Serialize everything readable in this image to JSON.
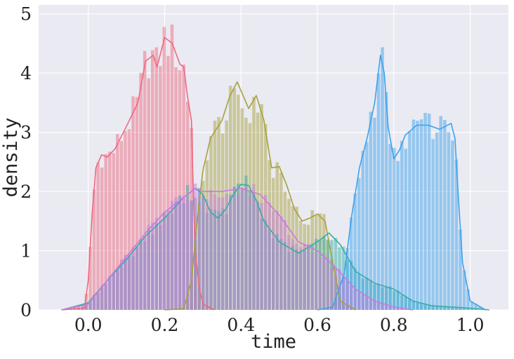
{
  "chart_data": {
    "type": "histogram",
    "title": "",
    "xlabel": "time",
    "ylabel": "density",
    "xlim": [
      -0.13,
      1.1
    ],
    "ylim": [
      0,
      5.15
    ],
    "x_ticks": [
      0.0,
      0.2,
      0.4,
      0.6,
      0.8,
      1.0
    ],
    "x_tick_labels": [
      "0.0",
      "0.2",
      "0.4",
      "0.6",
      "0.8",
      "1.0"
    ],
    "y_ticks": [
      0,
      1,
      2,
      3,
      4,
      5
    ],
    "y_tick_labels": [
      "0",
      "1",
      "2",
      "3",
      "4",
      "5"
    ],
    "grid": true,
    "legend": "none",
    "background": "#EAEAF2",
    "series": [
      {
        "color": "#F0687D",
        "kde": [
          [
            -0.07,
            0
          ],
          [
            -0.01,
            0.03
          ],
          [
            0.0,
            0.5
          ],
          [
            0.01,
            1.6
          ],
          [
            0.02,
            2.4
          ],
          [
            0.035,
            2.62
          ],
          [
            0.05,
            2.58
          ],
          [
            0.07,
            2.72
          ],
          [
            0.1,
            3.1
          ],
          [
            0.13,
            3.5
          ],
          [
            0.15,
            4.2
          ],
          [
            0.17,
            4.3
          ],
          [
            0.18,
            4.1
          ],
          [
            0.2,
            4.6
          ],
          [
            0.22,
            4.5
          ],
          [
            0.24,
            4.15
          ],
          [
            0.25,
            4.1
          ],
          [
            0.26,
            3.6
          ],
          [
            0.27,
            3.2
          ],
          [
            0.275,
            2.0
          ],
          [
            0.28,
            1.0
          ],
          [
            0.29,
            0.4
          ],
          [
            0.3,
            0.1
          ],
          [
            0.33,
            0
          ]
        ]
      },
      {
        "color": "#A7A13B",
        "kde": [
          [
            0.2,
            0
          ],
          [
            0.25,
            0.02
          ],
          [
            0.27,
            0.5
          ],
          [
            0.285,
            1.5
          ],
          [
            0.3,
            2.35
          ],
          [
            0.32,
            2.9
          ],
          [
            0.35,
            3.2
          ],
          [
            0.37,
            3.6
          ],
          [
            0.39,
            3.85
          ],
          [
            0.41,
            3.55
          ],
          [
            0.42,
            3.4
          ],
          [
            0.44,
            3.62
          ],
          [
            0.46,
            3.2
          ],
          [
            0.48,
            2.4
          ],
          [
            0.5,
            2.42
          ],
          [
            0.52,
            2.1
          ],
          [
            0.54,
            1.7
          ],
          [
            0.56,
            1.5
          ],
          [
            0.58,
            1.55
          ],
          [
            0.6,
            1.62
          ],
          [
            0.62,
            1.5
          ],
          [
            0.64,
            0.8
          ],
          [
            0.66,
            0.15
          ],
          [
            0.7,
            0
          ]
        ]
      },
      {
        "color": "#36ADA4",
        "kde": [
          [
            -0.07,
            0
          ],
          [
            0.0,
            0.12
          ],
          [
            0.05,
            0.5
          ],
          [
            0.1,
            0.85
          ],
          [
            0.15,
            1.25
          ],
          [
            0.2,
            1.55
          ],
          [
            0.25,
            1.9
          ],
          [
            0.28,
            2.05
          ],
          [
            0.3,
            1.95
          ],
          [
            0.32,
            1.65
          ],
          [
            0.34,
            1.55
          ],
          [
            0.36,
            1.7
          ],
          [
            0.38,
            1.95
          ],
          [
            0.4,
            2.12
          ],
          [
            0.42,
            2.1
          ],
          [
            0.44,
            1.85
          ],
          [
            0.46,
            1.5
          ],
          [
            0.5,
            1.15
          ],
          [
            0.55,
            0.96
          ],
          [
            0.6,
            1.15
          ],
          [
            0.63,
            1.3
          ],
          [
            0.66,
            1.1
          ],
          [
            0.7,
            0.65
          ],
          [
            0.75,
            0.45
          ],
          [
            0.8,
            0.35
          ],
          [
            0.85,
            0.15
          ],
          [
            0.9,
            0.07
          ],
          [
            1.0,
            0.03
          ],
          [
            1.05,
            0
          ]
        ]
      },
      {
        "color": "#3BA3EC",
        "kde": [
          [
            0.6,
            0
          ],
          [
            0.64,
            0.05
          ],
          [
            0.67,
            0.6
          ],
          [
            0.69,
            1.6
          ],
          [
            0.71,
            2.4
          ],
          [
            0.73,
            2.9
          ],
          [
            0.75,
            3.5
          ],
          [
            0.765,
            4.3
          ],
          [
            0.775,
            4.0
          ],
          [
            0.785,
            3.1
          ],
          [
            0.8,
            2.55
          ],
          [
            0.815,
            2.7
          ],
          [
            0.83,
            2.95
          ],
          [
            0.86,
            3.12
          ],
          [
            0.89,
            3.12
          ],
          [
            0.92,
            3.05
          ],
          [
            0.95,
            3.15
          ],
          [
            0.96,
            2.9
          ],
          [
            0.97,
            1.8
          ],
          [
            0.98,
            0.8
          ],
          [
            1.0,
            0.15
          ],
          [
            1.04,
            0
          ]
        ]
      },
      {
        "color": "#CC79E0",
        "kde": [
          [
            -0.07,
            0
          ],
          [
            0.0,
            0.1
          ],
          [
            0.05,
            0.5
          ],
          [
            0.1,
            0.9
          ],
          [
            0.15,
            1.3
          ],
          [
            0.2,
            1.65
          ],
          [
            0.25,
            1.9
          ],
          [
            0.28,
            2.05
          ],
          [
            0.3,
            2.0
          ],
          [
            0.35,
            2.0
          ],
          [
            0.4,
            2.05
          ],
          [
            0.45,
            1.95
          ],
          [
            0.5,
            1.6
          ],
          [
            0.55,
            1.15
          ],
          [
            0.6,
            1.0
          ],
          [
            0.65,
            0.7
          ],
          [
            0.7,
            0.35
          ],
          [
            0.75,
            0.15
          ],
          [
            0.8,
            0.05
          ],
          [
            0.85,
            0
          ]
        ]
      }
    ]
  }
}
